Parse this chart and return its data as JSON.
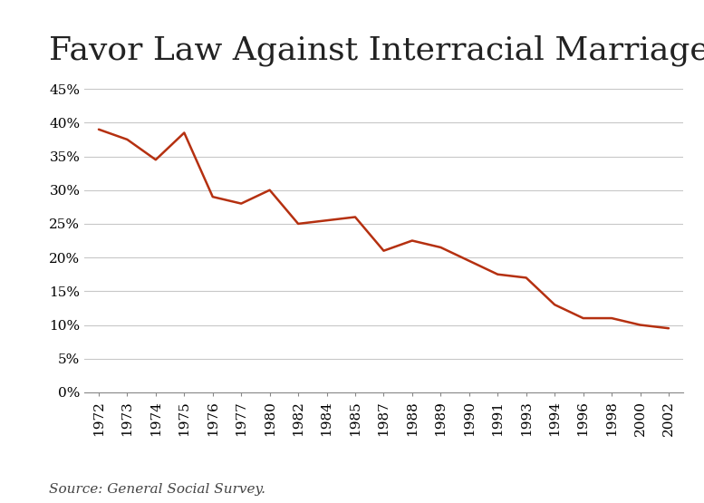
{
  "title": "Favor Law Against Interracial Marriage",
  "source_text": "Source: General Social Survey.",
  "years": [
    "1972",
    "1973",
    "1974",
    "1975",
    "1976",
    "1977",
    "1980",
    "1982",
    "1984",
    "1985",
    "1987",
    "1988",
    "1989",
    "1990",
    "1991",
    "1993",
    "1994",
    "1996",
    "1998",
    "2000",
    "2002"
  ],
  "values": [
    0.39,
    0.375,
    0.345,
    0.385,
    0.29,
    0.28,
    0.3,
    0.25,
    0.255,
    0.26,
    0.21,
    0.225,
    0.215,
    0.195,
    0.175,
    0.17,
    0.13,
    0.11,
    0.11,
    0.1,
    0.095
  ],
  "line_color": "#b53010",
  "line_width": 1.8,
  "background_color": "#ffffff",
  "grid_color": "#c8c8c8",
  "title_fontsize": 26,
  "tick_fontsize": 11,
  "source_fontsize": 11,
  "ylim": [
    0,
    0.47
  ],
  "ytick_values": [
    0.0,
    0.05,
    0.1,
    0.15,
    0.2,
    0.25,
    0.3,
    0.35,
    0.4,
    0.45
  ],
  "ytick_labels": [
    "0%",
    "5%",
    "10%",
    "15%",
    "20%",
    "25%",
    "30%",
    "35%",
    "40%",
    "45%"
  ]
}
